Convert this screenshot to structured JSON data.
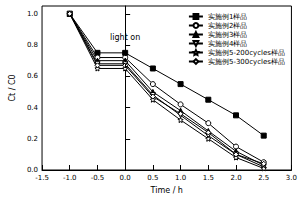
{
  "chart_data": {
    "type": "line",
    "x_label": "Time / h",
    "y_label": "Ct / C0",
    "x": [
      -1.0,
      -0.5,
      0.0,
      0.5,
      1.0,
      1.5,
      2.0,
      2.5
    ],
    "xlim": [
      -1.5,
      3.0
    ],
    "xticks": [
      -1.5,
      {
        "value": -1.0,
        "label": "-1.0"
      },
      -0.5,
      {
        "value": 0,
        "label": "0.0"
      },
      0.5,
      {
        "value": 1.0,
        "label": "1.0"
      },
      1.5,
      {
        "value": 2.0,
        "label": "2.0"
      },
      2.5,
      {
        "value": 3.0,
        "label": "3.0"
      }
    ],
    "ylim": [
      0,
      1.05
    ],
    "yticks": [
      {
        "value": 0,
        "label": "0.0"
      },
      0.2,
      0.4,
      0.6,
      0.8,
      {
        "value": 1.0,
        "label": "1.0"
      }
    ],
    "grid": false,
    "legend": "upper right",
    "annotations": [
      {
        "text": "light on",
        "x": 0,
        "y": 0.85
      }
    ],
    "series": [
      {
        "name": "实施例1样品",
        "color": "#000000",
        "marker": "square",
        "values": [
          1.0,
          0.75,
          0.75,
          0.65,
          0.55,
          0.45,
          0.35,
          0.22
        ]
      },
      {
        "name": "实施例2样品",
        "color": "#000000",
        "marker": "circle_open",
        "values": [
          1.0,
          0.72,
          0.72,
          0.55,
          0.42,
          0.3,
          0.15,
          0.05
        ]
      },
      {
        "name": "实施例3样品",
        "color": "#000000",
        "marker": "triangle",
        "values": [
          1.0,
          0.7,
          0.7,
          0.5,
          0.38,
          0.25,
          0.12,
          0.03
        ]
      },
      {
        "name": "实施例4样品",
        "color": "#000000",
        "marker": "triangle_down_open",
        "values": [
          1.0,
          0.68,
          0.68,
          0.48,
          0.35,
          0.22,
          0.1,
          0.02
        ]
      },
      {
        "name": "实施例5-200cycles样品",
        "color": "#000000",
        "marker": "star_open",
        "values": [
          1.0,
          0.65,
          0.65,
          0.45,
          0.32,
          0.2,
          0.08,
          0.01
        ]
      },
      {
        "name": "实施例5-300cycles样品",
        "color": "#000000",
        "marker": "diamond_open",
        "values": [
          1.0,
          0.67,
          0.67,
          0.47,
          0.36,
          0.24,
          0.1,
          0.04
        ]
      }
    ]
  }
}
